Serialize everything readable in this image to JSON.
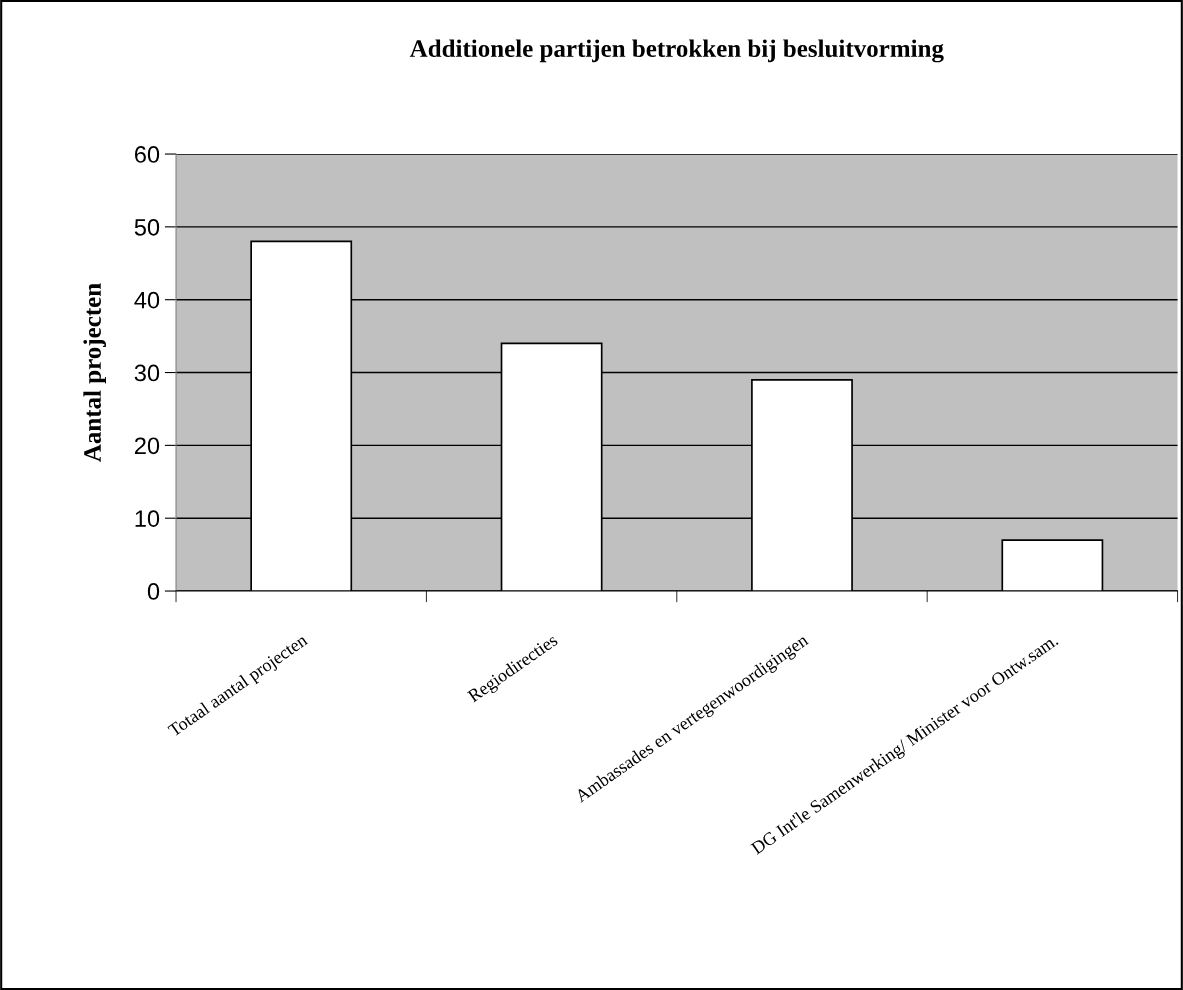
{
  "chart_data": {
    "type": "bar",
    "title": "Additionele partijen betrokken bij besluitvorming",
    "ylabel": "Aantal projecten",
    "categories": [
      "Totaal aantal projecten",
      "Regiodirecties",
      "Ambassades en vertegenwoordigingen",
      "DG Int'le Samenwerking/ Minister voor Ontw.sam."
    ],
    "values": [
      48,
      34,
      29,
      7
    ],
    "color": "#ffffff",
    "ylim": [
      0,
      60
    ],
    "yticks": [
      0,
      10,
      20,
      30,
      40,
      50,
      60
    ],
    "grid": "y",
    "legend": false
  }
}
